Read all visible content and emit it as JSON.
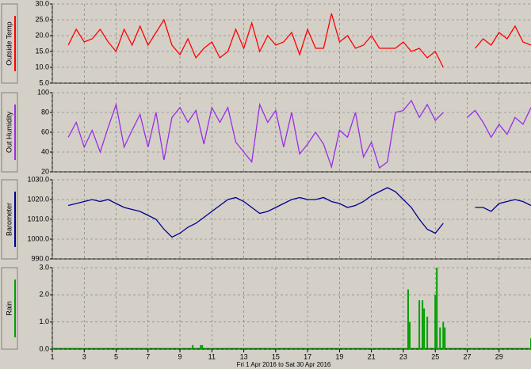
{
  "chart_data": [
    {
      "type": "line",
      "ylabel": "Outside Temp",
      "color": "#ff0000",
      "x": [
        2,
        2.5,
        3,
        3.5,
        4,
        4.5,
        5,
        5.5,
        6,
        6.5,
        7,
        7.5,
        8,
        8.5,
        9,
        9.5,
        10,
        10.5,
        11,
        11.5,
        12,
        12.5,
        13,
        13.5,
        14,
        14.5,
        15,
        15.5,
        16,
        16.5,
        17,
        17.5,
        18,
        18.5,
        19,
        19.5,
        20,
        20.5,
        21,
        21.5,
        22,
        22.5,
        23,
        23.5,
        24,
        24.5,
        25,
        25.5,
        26,
        26.5,
        27,
        27.5,
        28,
        28.5,
        29,
        29.5,
        30,
        30.5,
        31
      ],
      "values": [
        17,
        22,
        18,
        19,
        22,
        18,
        15,
        22,
        17,
        23,
        17,
        21,
        25,
        17,
        14,
        19,
        13,
        16,
        18,
        13,
        15,
        22,
        16,
        24,
        15,
        20,
        17,
        18,
        21,
        14,
        22,
        16,
        16,
        27,
        18,
        20,
        16,
        17,
        20,
        16,
        16,
        16,
        18,
        15,
        16,
        13,
        15,
        10,
        null,
        null,
        null,
        16,
        19,
        17,
        21,
        19,
        23,
        18,
        17
      ],
      "ylim": [
        5,
        30
      ],
      "yticks": [
        {
          "value": 5,
          "label": "5.0"
        },
        {
          "value": 10,
          "label": "10.0"
        },
        {
          "value": 15,
          "label": "15.0"
        },
        {
          "value": 20,
          "label": "20.0"
        },
        {
          "value": 25,
          "label": "25.0"
        },
        {
          "value": 30,
          "label": "30.0"
        }
      ],
      "grid": true
    },
    {
      "type": "line",
      "ylabel": "Out Humidity",
      "color": "#9a2ee6",
      "x": [
        2,
        2.5,
        3,
        3.5,
        4,
        4.5,
        5,
        5.5,
        6,
        6.5,
        7,
        7.5,
        8,
        8.5,
        9,
        9.5,
        10,
        10.5,
        11,
        11.5,
        12,
        12.5,
        13,
        13.5,
        14,
        14.5,
        15,
        15.5,
        16,
        16.5,
        17,
        17.5,
        18,
        18.5,
        19,
        19.5,
        20,
        20.5,
        21,
        21.5,
        22,
        22.5,
        23,
        23.5,
        24,
        24.5,
        25,
        25.5,
        26,
        26.5,
        27,
        27.5,
        28,
        28.5,
        29,
        29.5,
        30,
        30.5,
        31
      ],
      "values": [
        55,
        70,
        45,
        62,
        40,
        65,
        88,
        45,
        62,
        78,
        45,
        80,
        32,
        75,
        85,
        70,
        82,
        48,
        85,
        70,
        85,
        50,
        40,
        30,
        88,
        70,
        82,
        45,
        80,
        38,
        48,
        60,
        48,
        25,
        62,
        55,
        80,
        35,
        50,
        24,
        30,
        80,
        82,
        92,
        75,
        88,
        72,
        80,
        null,
        null,
        75,
        82,
        70,
        55,
        68,
        58,
        75,
        68,
        85
      ],
      "ylim": [
        20,
        100
      ],
      "yticks": [
        20,
        40,
        60,
        80,
        100
      ],
      "grid": true
    },
    {
      "type": "line",
      "ylabel": "Barometer",
      "color": "#000090",
      "x": [
        2,
        2.5,
        3,
        3.5,
        4,
        4.5,
        5,
        5.5,
        6,
        6.5,
        7,
        7.5,
        8,
        8.5,
        9,
        9.5,
        10,
        10.5,
        11,
        11.5,
        12,
        12.5,
        13,
        13.5,
        14,
        14.5,
        15,
        15.5,
        16,
        16.5,
        17,
        17.5,
        18,
        18.5,
        19,
        19.5,
        20,
        20.5,
        21,
        21.5,
        22,
        22.5,
        23,
        23.5,
        24,
        24.5,
        25,
        25.5,
        26,
        26.5,
        27,
        27.5,
        28,
        28.5,
        29,
        29.5,
        30,
        30.5,
        31
      ],
      "values": [
        1017,
        1018,
        1019,
        1020,
        1019,
        1020,
        1018,
        1016,
        1015,
        1014,
        1012,
        1010,
        1005,
        1001,
        1003,
        1006,
        1008,
        1011,
        1014,
        1017,
        1020,
        1021,
        1019,
        1016,
        1013,
        1014,
        1016,
        1018,
        1020,
        1021,
        1020,
        1020,
        1021,
        1019,
        1018,
        1016,
        1017,
        1019,
        1022,
        1024,
        1026,
        1024,
        1020,
        1016,
        1010,
        1005,
        1003,
        1008,
        null,
        null,
        null,
        1016,
        1016,
        1014,
        1018,
        1019,
        1020,
        1019,
        1017
      ],
      "ylim": [
        990,
        1030
      ],
      "yticks": [
        {
          "value": 990,
          "label": "990.0"
        },
        {
          "value": 1000,
          "label": "1000.0"
        },
        {
          "value": 1010,
          "label": "1010.0"
        },
        {
          "value": 1020,
          "label": "1020.0"
        },
        {
          "value": 1030,
          "label": "1030.0"
        }
      ],
      "grid": true
    },
    {
      "type": "bar",
      "ylabel": "Rain",
      "color": "#00a000",
      "x": [
        2,
        9.8,
        10.3,
        10.4,
        23.3,
        23.4,
        24,
        24.2,
        24.3,
        24.5,
        25,
        25.1,
        25.3,
        25.5,
        25.6,
        31
      ],
      "values": [
        0.05,
        0.15,
        0.15,
        0.15,
        2.2,
        1.0,
        1.8,
        1.8,
        1.5,
        1.2,
        2.0,
        3.0,
        0.8,
        1.0,
        0.8,
        0.4
      ],
      "ylim": [
        0,
        3
      ],
      "yticks": [
        {
          "value": 0,
          "label": "0.0"
        },
        {
          "value": 1,
          "label": "1.0"
        },
        {
          "value": 2,
          "label": "2.0"
        },
        {
          "value": 3,
          "label": "3.0"
        }
      ],
      "grid": true,
      "xlim": [
        1,
        31
      ],
      "xticks": [
        1,
        3,
        5,
        7,
        9,
        11,
        13,
        15,
        17,
        19,
        21,
        23,
        25,
        27,
        29
      ],
      "xlabel": "Fri 1 Apr 2016  to  Sat 30 Apr 2016"
    }
  ]
}
